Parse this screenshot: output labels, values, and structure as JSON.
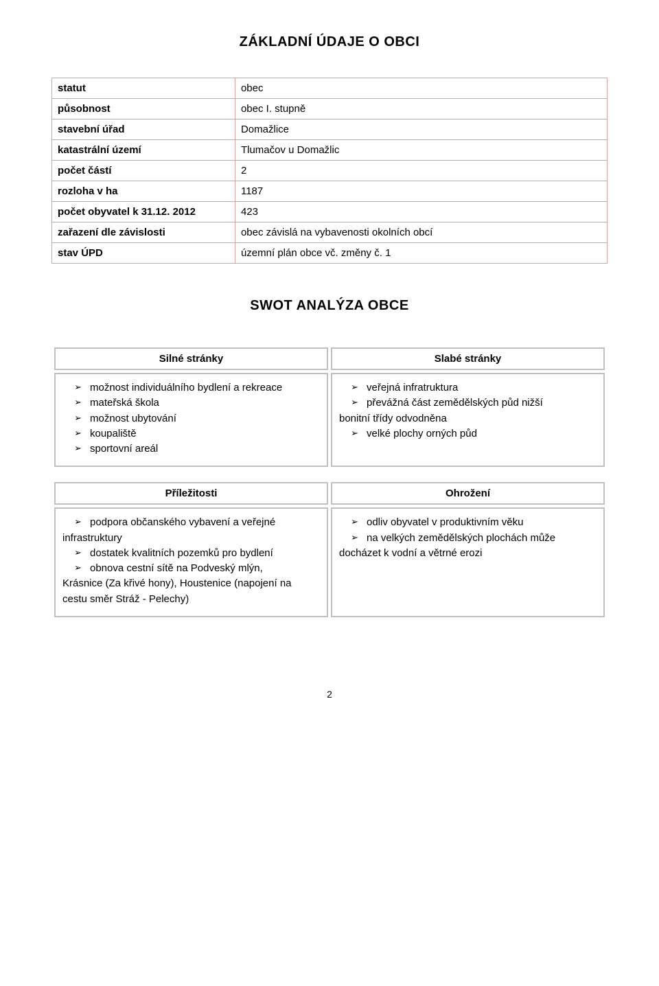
{
  "title_main": "ZÁKLADNÍ ÚDAJE O OBCI",
  "title_swot": "SWOT ANALÝZA OBCE",
  "info_rows": [
    {
      "label": "statut",
      "value": "obec"
    },
    {
      "label": "působnost",
      "value": "obec I. stupně"
    },
    {
      "label": "stavební úřad",
      "value": "Domažlice"
    },
    {
      "label": "katastrální území",
      "value": "Tlumačov u Domažlic"
    },
    {
      "label": "počet částí",
      "value": "2"
    },
    {
      "label": "rozloha v ha",
      "value": "1187"
    },
    {
      "label": "počet obyvatel k 31.12. 2012",
      "value": "423"
    },
    {
      "label": "zařazení dle závislosti",
      "value": "obec závislá na vybavenosti okolních obcí"
    },
    {
      "label": "stav ÚPD",
      "value": "územní plán obce vč. změny č. 1"
    }
  ],
  "swot": {
    "headers": {
      "strengths": "Silné stránky",
      "weaknesses": "Slabé stránky",
      "opportunities": "Příležitosti",
      "threats": "Ohrožení"
    },
    "strengths": [
      {
        "type": "bullet",
        "text": "možnost individuálního bydlení  a rekreace"
      },
      {
        "type": "bullet",
        "text": "mateřská škola"
      },
      {
        "type": "bullet",
        "text": "možnost ubytování"
      },
      {
        "type": "bullet",
        "text": "koupaliště"
      },
      {
        "type": "bullet",
        "text": "sportovní areál"
      }
    ],
    "weaknesses": [
      {
        "type": "bullet",
        "text": "veřejná infratruktura"
      },
      {
        "type": "bullet",
        "text": "převážná část zemědělských půd nižší"
      },
      {
        "type": "cont",
        "text": "bonitní třídy odvodněna"
      },
      {
        "type": "bullet",
        "text": "velké plochy orných půd"
      }
    ],
    "opportunities": [
      {
        "type": "bullet",
        "text": "podpora občanského vybavení a veřejné"
      },
      {
        "type": "cont",
        "text": "infrastruktury"
      },
      {
        "type": "bullet",
        "text": "dostatek kvalitních pozemků pro bydlení"
      },
      {
        "type": "bullet",
        "text": "obnova cestní sítě na Podveský mlýn,"
      },
      {
        "type": "cont",
        "text": "Krásnice (Za křivé hony), Houstenice (napojení na"
      },
      {
        "type": "cont",
        "text": "cestu směr Stráž - Pelechy)"
      }
    ],
    "threats": [
      {
        "type": "bullet",
        "text": "odliv obyvatel v produktivním věku"
      },
      {
        "type": "bullet",
        "text": "na velkých zemědělských plochách může"
      },
      {
        "type": "cont",
        "text": "docházet k vodní a větrné erozi"
      }
    ]
  },
  "arrow_glyph": "➢",
  "page_number": "2",
  "colors": {
    "info_border": "#d9a0a0",
    "swot_border": "#c0c0c0",
    "text": "#000000",
    "background": "#ffffff"
  }
}
